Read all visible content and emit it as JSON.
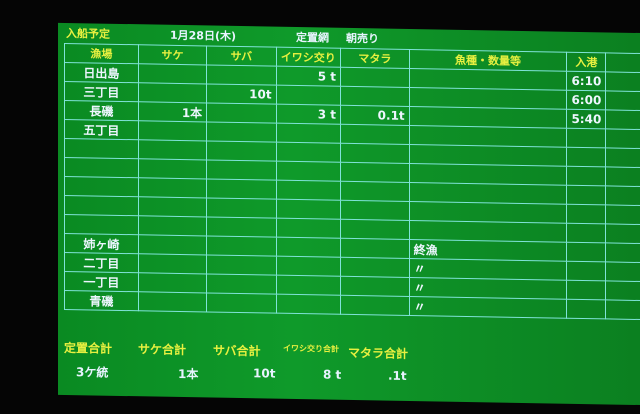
{
  "header": {
    "label": "入船予定",
    "date": "1月28日(木)",
    "type": "定置網",
    "sale": "朝売り"
  },
  "columns": [
    "漁場",
    "サケ",
    "サバ",
    "イワシ交り",
    "マタラ",
    "魚種・数量等",
    "入港",
    ""
  ],
  "rows": [
    {
      "name": "日出島",
      "sake": "",
      "saba": "",
      "iwashi": "5 t",
      "matara": "",
      "note": "",
      "time": "6:10"
    },
    {
      "name": "三丁目",
      "sake": "",
      "saba": "10t",
      "iwashi": "",
      "matara": "",
      "note": "",
      "time": "6:00"
    },
    {
      "name": "長磯",
      "sake": "1本",
      "saba": "",
      "iwashi": "3 t",
      "matara": "0.1t",
      "note": "",
      "time": "5:40"
    },
    {
      "name": "五丁目",
      "sake": "",
      "saba": "",
      "iwashi": "",
      "matara": "",
      "note": "",
      "time": ""
    },
    {
      "name": "",
      "sake": "",
      "saba": "",
      "iwashi": "",
      "matara": "",
      "note": "",
      "time": ""
    },
    {
      "name": "",
      "sake": "",
      "saba": "",
      "iwashi": "",
      "matara": "",
      "note": "",
      "time": ""
    },
    {
      "name": "",
      "sake": "",
      "saba": "",
      "iwashi": "",
      "matara": "",
      "note": "",
      "time": ""
    },
    {
      "name": "",
      "sake": "",
      "saba": "",
      "iwashi": "",
      "matara": "",
      "note": "",
      "time": ""
    },
    {
      "name": "",
      "sake": "",
      "saba": "",
      "iwashi": "",
      "matara": "",
      "note": "",
      "time": ""
    },
    {
      "name": "姉ヶ崎",
      "sake": "",
      "saba": "",
      "iwashi": "",
      "matara": "",
      "note": "終漁",
      "time": ""
    },
    {
      "name": "二丁目",
      "sake": "",
      "saba": "",
      "iwashi": "",
      "matara": "",
      "note": "〃",
      "time": ""
    },
    {
      "name": "一丁目",
      "sake": "",
      "saba": "",
      "iwashi": "",
      "matara": "",
      "note": "〃",
      "time": ""
    },
    {
      "name": "青磯",
      "sake": "",
      "saba": "",
      "iwashi": "",
      "matara": "",
      "note": "〃",
      "time": ""
    }
  ],
  "totals": {
    "labels": [
      "定置合計",
      "サケ合計",
      "サバ合計",
      "イワシ交り合計",
      "マタラ合計"
    ],
    "values": [
      "3ケ統",
      "1本",
      "10t",
      "8 t",
      ".1t"
    ]
  }
}
